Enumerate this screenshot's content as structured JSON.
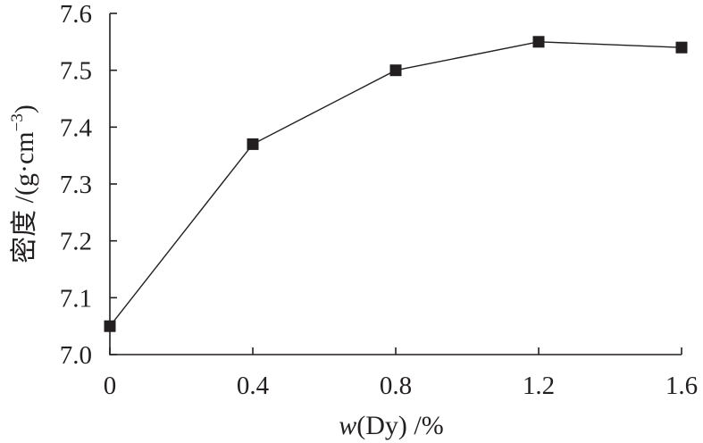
{
  "chart_data": {
    "type": "line",
    "x": [
      0,
      0.4,
      0.8,
      1.2,
      1.6
    ],
    "series": [
      {
        "values": [
          7.05,
          7.37,
          7.5,
          7.55,
          7.54
        ]
      }
    ],
    "xticks": [
      "0",
      "0.4",
      "0.8",
      "1.2",
      "1.6"
    ],
    "yticks": [
      "7.0",
      "7.1",
      "7.2",
      "7.3",
      "7.4",
      "7.5",
      "7.6"
    ],
    "xlim": [
      0,
      1.6
    ],
    "ylim": [
      7.0,
      7.6
    ],
    "xlabel": {
      "var": "w",
      "rest": "(Dy) /%"
    },
    "ylabel": {
      "main": "密度 /(g·cm",
      "sup": "−3",
      "close": ")"
    },
    "grid": false,
    "marker": "square",
    "line_color": "#231f20"
  }
}
